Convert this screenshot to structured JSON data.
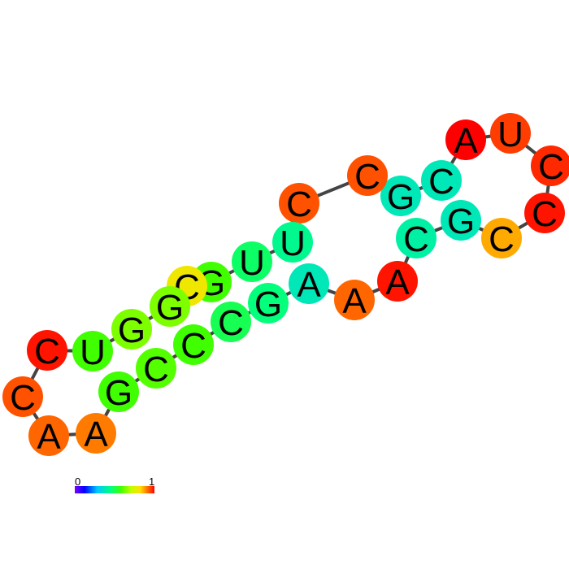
{
  "diagram": {
    "sequence": [
      "C",
      "C",
      "A",
      "A",
      "G",
      "C",
      "C",
      "C",
      "G",
      "A",
      "A",
      "A",
      "C",
      "G",
      "C",
      "C",
      "C",
      "U",
      "A",
      "C",
      "G",
      "C",
      "U",
      "C",
      "G",
      "G",
      "U",
      "C"
    ],
    "reactivity": [
      0.98,
      0.92,
      0.9,
      0.88,
      0.5,
      0.52,
      0.5,
      0.42,
      0.38,
      0.32,
      0.9,
      0.98,
      0.34,
      0.32,
      0.82,
      0.98,
      0.96,
      0.94,
      1.0,
      0.32,
      0.32,
      0.92,
      0.36,
      0.4,
      0.56,
      0.72,
      0.5,
      0.92
    ],
    "backbone_color": "#444444",
    "colormap": [
      "#8000ff",
      "#0000ff",
      "#00c8ff",
      "#00ff80",
      "#40ff00",
      "#c0ff00",
      "#ffe000",
      "#ff8000",
      "#ff0000"
    ]
  },
  "scale": {
    "min_label": "0",
    "max_label": "1"
  }
}
